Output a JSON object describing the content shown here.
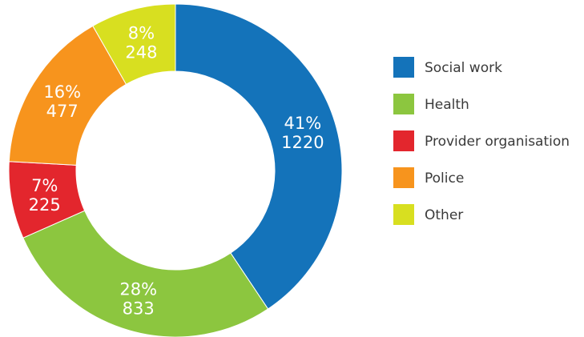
{
  "chart_data": {
    "type": "pie",
    "title": "",
    "donut": true,
    "legend_position": "right",
    "categories": [
      "Social work",
      "Health",
      "Provider organisation",
      "Police",
      "Other"
    ],
    "values": [
      1220,
      833,
      225,
      477,
      248
    ],
    "percent_labels": [
      "41%",
      "28%",
      "7%",
      "16%",
      "8%"
    ],
    "colors": [
      "#1473ba",
      "#8cc63f",
      "#e3262d",
      "#f7941d",
      "#d8df20"
    ]
  }
}
